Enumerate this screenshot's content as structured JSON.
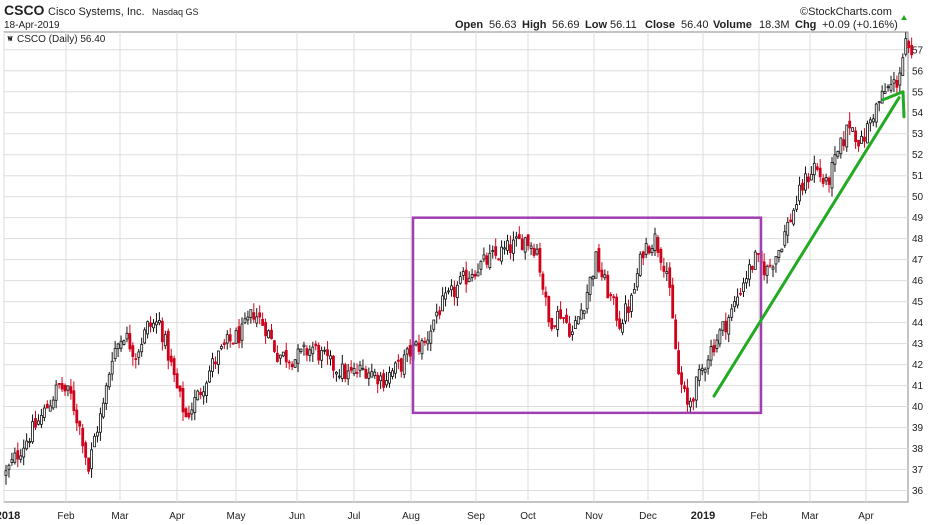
{
  "header": {
    "ticker": "CSCO",
    "company": "Cisco Systems, Inc.",
    "exchange": "Nasdaq GS",
    "date": "18-Apr-2019",
    "open_label": "Open",
    "open": "56.63",
    "high_label": "High",
    "high": "56.69",
    "low_label": "Low",
    "low": "56.11",
    "close_label": "Close",
    "close": "56.40",
    "volume_label": "Volume",
    "volume": "18.3M",
    "chg_label": "Chg",
    "chg": "+0.09 (+0.16%)",
    "brand": "©StockCharts.com"
  },
  "legend": {
    "text": "CSCO (Daily) 56.40"
  },
  "colors": {
    "up": "#111111",
    "down": "#d0021b",
    "box": "#a040b0",
    "arrow": "#22aa22",
    "grid": "#dddddd"
  },
  "chart_data": {
    "type": "candlestick",
    "title": "CSCO",
    "ylim": [
      35.5,
      57.8
    ],
    "yticks": [
      36,
      37,
      38,
      39,
      40,
      41,
      42,
      43,
      44,
      45,
      46,
      47,
      48,
      49,
      50,
      51,
      52,
      53,
      54,
      55,
      56,
      57
    ],
    "xticks": [
      "2018",
      "Feb",
      "Mar",
      "Apr",
      "May",
      "Jun",
      "Jul",
      "Aug",
      "Sep",
      "Oct",
      "Nov",
      "Dec",
      "2019",
      "Feb",
      "Mar",
      "Apr"
    ],
    "price_path": [
      [
        0,
        36.8
      ],
      [
        5,
        38.0
      ],
      [
        12,
        39.5
      ],
      [
        18,
        41.0
      ],
      [
        22,
        40.5
      ],
      [
        26,
        38.5
      ],
      [
        28,
        37.0
      ],
      [
        30,
        38.5
      ],
      [
        33,
        40.0
      ],
      [
        36,
        42.5
      ],
      [
        40,
        43.5
      ],
      [
        44,
        42.5
      ],
      [
        48,
        43.8
      ],
      [
        52,
        44.0
      ],
      [
        55,
        42.5
      ],
      [
        58,
        40.8
      ],
      [
        61,
        39.5
      ],
      [
        65,
        40.5
      ],
      [
        70,
        42.0
      ],
      [
        75,
        43.0
      ],
      [
        80,
        43.5
      ],
      [
        84,
        44.5
      ],
      [
        88,
        43.8
      ],
      [
        92,
        42.5
      ],
      [
        98,
        42.3
      ],
      [
        104,
        42.8
      ],
      [
        110,
        42.0
      ],
      [
        116,
        41.5
      ],
      [
        122,
        41.8
      ],
      [
        128,
        41.3
      ],
      [
        134,
        42.0
      ],
      [
        138,
        42.8
      ],
      [
        142,
        43.0
      ],
      [
        146,
        44.5
      ],
      [
        152,
        45.5
      ],
      [
        158,
        46.5
      ],
      [
        164,
        47.0
      ],
      [
        170,
        47.5
      ],
      [
        176,
        48.0
      ],
      [
        180,
        47.5
      ],
      [
        184,
        44.0
      ],
      [
        188,
        44.5
      ],
      [
        192,
        43.5
      ],
      [
        196,
        45.0
      ],
      [
        200,
        47.0
      ],
      [
        204,
        45.5
      ],
      [
        208,
        44.0
      ],
      [
        212,
        45.0
      ],
      [
        216,
        47.5
      ],
      [
        220,
        48.0
      ],
      [
        224,
        46.5
      ],
      [
        228,
        41.5
      ],
      [
        231,
        40.0
      ],
      [
        234,
        41.0
      ],
      [
        238,
        42.5
      ],
      [
        242,
        43.5
      ],
      [
        246,
        44.5
      ],
      [
        250,
        46.0
      ],
      [
        254,
        47.0
      ],
      [
        258,
        46.5
      ],
      [
        262,
        47.5
      ],
      [
        266,
        49.0
      ],
      [
        270,
        50.5
      ],
      [
        274,
        51.5
      ],
      [
        278,
        50.5
      ],
      [
        282,
        52.0
      ],
      [
        286,
        53.5
      ],
      [
        290,
        52.5
      ],
      [
        294,
        54.0
      ],
      [
        298,
        55.0
      ],
      [
        302,
        55.5
      ],
      [
        305,
        57.2
      ],
      [
        307,
        56.4
      ]
    ],
    "candle_count": 307,
    "last_close": 56.4,
    "annotations": [
      {
        "type": "rectangle",
        "x_range": [
          "Aug 2018",
          "Feb 2019"
        ],
        "y_range": [
          39.7,
          49.0
        ]
      },
      {
        "type": "arrow",
        "from": [
          "Jan 2019",
          40.5
        ],
        "to": [
          "Apr 2019",
          55.0
        ]
      }
    ]
  }
}
